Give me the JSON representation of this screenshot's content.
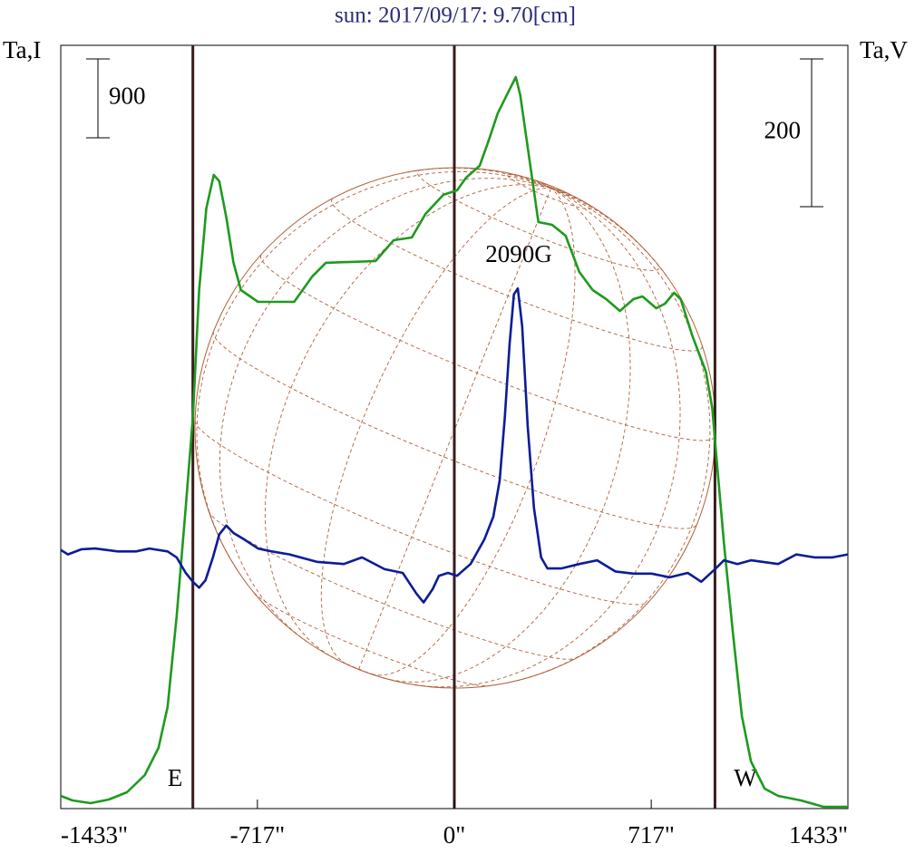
{
  "chart_data": {
    "type": "line",
    "title": "sun: 2017/09/17: 9.70[cm]",
    "y_label": "Ta,I",
    "y2_label": "Ta,V",
    "xlim": [
      -1433,
      1433
    ],
    "xticks": [
      {
        "value": -1433,
        "label": "-1433\""
      },
      {
        "value": -717,
        "label": "-717\""
      },
      {
        "value": 0,
        "label": "0\""
      },
      {
        "value": 717,
        "label": "717\""
      },
      {
        "value": 1433,
        "label": "1433\""
      }
    ],
    "ylim": [
      0,
      8710
    ],
    "y2lim": [
      -319,
      714
    ],
    "scale_bars": [
      {
        "value": 900,
        "axis": "y"
      },
      {
        "value": 200,
        "axis": "y2"
      }
    ],
    "vlines": [
      -952,
      0,
      949
    ],
    "vline_color": "#3a1c1c",
    "limb_labels": [
      "E",
      "W"
    ],
    "annotation": "2090G",
    "series": [
      {
        "name": "I",
        "color": "#1e9a1e",
        "x": [
          -1433,
          -1390,
          -1324,
          -1258,
          -1192,
          -1127,
          -1077,
          -1044,
          -1011,
          -978,
          -952,
          -929,
          -903,
          -876,
          -856,
          -830,
          -804,
          -777,
          -715,
          -583,
          -517,
          -468,
          -287,
          -221,
          -155,
          -105,
          -40,
          10,
          43,
          92,
          125,
          158,
          191,
          224,
          240,
          273,
          306,
          356,
          405,
          455,
          504,
          553,
          603,
          652,
          685,
          735,
          767,
          800,
          824,
          866,
          916,
          939,
          959,
          982,
          1015,
          1047,
          1080,
          1130,
          1179,
          1262,
          1344,
          1433
        ],
        "values": [
          145,
          93,
          62,
          103,
          186,
          383,
          693,
          1159,
          2193,
          3435,
          4469,
          5917,
          6848,
          7231,
          7159,
          6745,
          6228,
          5917,
          5783,
          5783,
          6073,
          6228,
          6248,
          6486,
          6517,
          6786,
          7004,
          7055,
          7200,
          7335,
          7624,
          7935,
          8142,
          8348,
          8142,
          7417,
          6693,
          6662,
          6538,
          6124,
          5917,
          5814,
          5679,
          5814,
          5845,
          5710,
          5762,
          5886,
          5814,
          5400,
          4986,
          4572,
          3848,
          3021,
          1986,
          1055,
          538,
          228,
          145,
          93,
          21,
          21
        ]
      },
      {
        "name": "V",
        "color": "#0c1c98",
        "axis": "y2",
        "x": [
          -1433,
          -1407,
          -1357,
          -1308,
          -1225,
          -1159,
          -1110,
          -1044,
          -1011,
          -978,
          -952,
          -929,
          -906,
          -879,
          -856,
          -830,
          -804,
          -764,
          -715,
          -665,
          -600,
          -501,
          -402,
          -336,
          -254,
          -188,
          -138,
          -112,
          -79,
          -56,
          -23,
          10,
          59,
          109,
          142,
          165,
          184,
          201,
          217,
          231,
          247,
          267,
          290,
          316,
          339,
          389,
          455,
          520,
          586,
          652,
          718,
          784,
          850,
          899,
          949,
          982,
          1031,
          1080,
          1179,
          1245,
          1311,
          1377,
          1433
        ],
        "values": [
          31,
          25,
          32,
          33,
          29,
          29,
          33,
          29,
          21,
          0,
          -12,
          -20,
          -10,
          21,
          52,
          64,
          54,
          45,
          33,
          29,
          25,
          15,
          12,
          21,
          5,
          0,
          -28,
          -40,
          -22,
          -4,
          0,
          -4,
          12,
          45,
          76,
          125,
          211,
          309,
          377,
          385,
          334,
          199,
          88,
          21,
          6,
          6,
          12,
          17,
          2,
          -1,
          -1,
          -6,
          0,
          -12,
          5,
          17,
          12,
          17,
          12,
          25,
          21,
          21,
          25
        ]
      }
    ]
  }
}
